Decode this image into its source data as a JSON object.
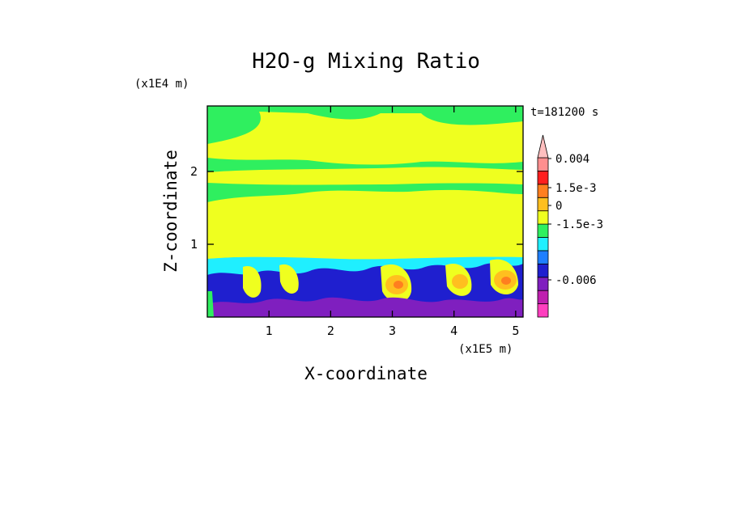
{
  "chart_data": {
    "type": "heatmap",
    "title": "H2O-g Mixing Ratio",
    "time_label": "t=181200 s",
    "xlabel": "X-coordinate",
    "ylabel": "Z-coordinate",
    "x_unit": "(x1E5 m)",
    "y_unit": "(x1E4 m)",
    "x_ticks": [
      1,
      2,
      3,
      4,
      5
    ],
    "y_ticks": [
      1,
      2
    ],
    "xlim": [
      0,
      5.12
    ],
    "ylim": [
      0,
      2.9
    ],
    "colorbar": {
      "colors": [
        "#ff3fbf",
        "#bf1faf",
        "#7f1fbf",
        "#1f1fcf",
        "#1f7fff",
        "#1fefff",
        "#2fef5f",
        "#efff1f",
        "#ffbf1f",
        "#ff7f1f",
        "#ff1f1f",
        "#ff8f8f",
        "#ffbfbf"
      ],
      "labels": [
        "0.004",
        "1.5e-3",
        "0",
        "-1.5e-3",
        "-0.006"
      ],
      "extend": "max"
    },
    "field_description": "2D contour field; green/yellow aloft, mixed anomalies (blue/purple negative, orange positive) near the surface below z≈0.8"
  }
}
